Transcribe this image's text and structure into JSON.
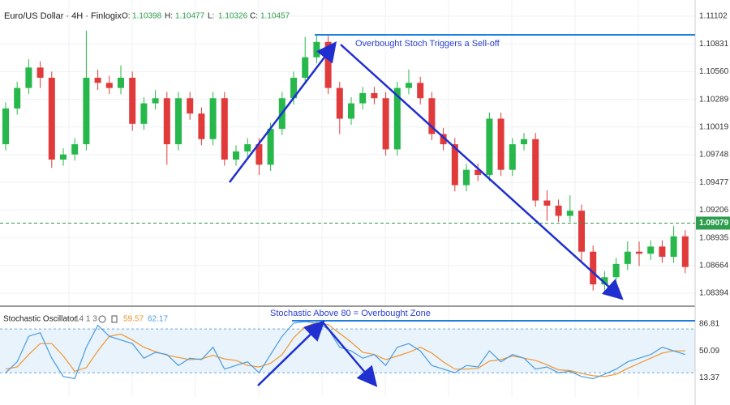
{
  "chart_data": [
    {
      "type": "candlestick",
      "title": "Euro/US Dollar · 4H · Finlogix",
      "ohlc_labels": [
        "O:",
        "H:",
        "L:",
        "C:"
      ],
      "ohlc_values": [
        1.10398,
        1.10477,
        1.10326,
        1.10457
      ],
      "annotation": "Overbought Stoch Triggers a Sell-off",
      "up_color": "#26b84a",
      "down_color": "#e03a3a",
      "last_price": 1.09079,
      "last_price_color": "#2e9e4e",
      "ylim": [
        1.08275,
        1.1126
      ],
      "yticks": [
        1.11102,
        1.10831,
        {
          "value": 1.1056,
          "label": "1.10560"
        },
        1.10289,
        1.10019,
        1.09748,
        1.09477,
        1.09206,
        1.08935,
        1.08664,
        1.08394
      ],
      "grid": true,
      "open": [
        1.0985,
        1.102,
        1.104,
        1.106,
        1.105,
        1.097,
        1.0975,
        1.0985,
        1.105,
        1.1045,
        1.104,
        1.105,
        1.1005,
        1.1025,
        1.103,
        1.0985,
        1.103,
        1.1015,
        1.099,
        1.103,
        1.097,
        1.0978,
        1.0985,
        1.0965,
        1.1,
        1.103,
        1.105,
        1.107,
        1.1085,
        1.104,
        1.101,
        1.1025,
        1.1035,
        1.103,
        1.098,
        1.104,
        1.1045,
        1.103,
        1.0995,
        1.0985,
        1.0945,
        1.096,
        1.0955,
        1.101,
        1.096,
        1.0985,
        1.099,
        1.093,
        1.0925,
        1.0915,
        1.092,
        1.088,
        1.0848,
        1.0855,
        1.0868,
        1.088,
        1.0878,
        1.0885,
        1.0875,
        1.0895
      ],
      "high": [
        1.1026,
        1.1046,
        1.1068,
        1.1066,
        1.1056,
        1.0981,
        1.0991,
        1.1096,
        1.1058,
        1.1052,
        1.1062,
        1.1056,
        1.1031,
        1.1038,
        1.1036,
        1.1036,
        1.1036,
        1.1021,
        1.1036,
        1.1036,
        1.0984,
        1.0991,
        1.0991,
        1.1006,
        1.1036,
        1.1056,
        1.109,
        1.1092,
        1.1091,
        1.1046,
        1.1031,
        1.1041,
        1.1041,
        1.1036,
        1.1046,
        1.1058,
        1.1051,
        1.1036,
        1.1001,
        1.0991,
        1.0966,
        1.0966,
        1.1016,
        1.1016,
        1.0991,
        1.0996,
        1.0996,
        1.094,
        1.0931,
        1.0935,
        1.0926,
        1.0886,
        1.0861,
        1.0874,
        1.089,
        1.089,
        1.0891,
        1.0891,
        1.0905,
        1.0901
      ],
      "low": [
        1.0979,
        1.1014,
        1.1034,
        1.104,
        1.0962,
        1.0964,
        1.0969,
        1.0979,
        1.1038,
        1.1034,
        1.1034,
        1.0998,
        1.0999,
        1.1019,
        1.0965,
        1.0979,
        1.1009,
        1.0984,
        1.0984,
        1.0964,
        1.0964,
        1.0972,
        1.0955,
        1.0959,
        1.0994,
        1.1024,
        1.1044,
        1.1064,
        1.1034,
        1.0995,
        1.1004,
        1.1019,
        1.1024,
        1.0974,
        1.0974,
        1.1034,
        1.1024,
        1.0989,
        1.0979,
        1.0939,
        1.0939,
        1.0949,
        1.0949,
        1.0954,
        1.0954,
        1.0979,
        1.0924,
        1.091,
        1.0909,
        1.0909,
        1.087,
        1.0842,
        1.0842,
        1.0849,
        1.0862,
        1.0866,
        1.0872,
        1.0869,
        1.0869,
        1.0859
      ],
      "close": [
        1.102,
        1.104,
        1.106,
        1.105,
        1.097,
        1.0975,
        1.0985,
        1.105,
        1.1045,
        1.104,
        1.105,
        1.1005,
        1.1025,
        1.103,
        1.0985,
        1.103,
        1.1015,
        1.099,
        1.103,
        1.097,
        1.0978,
        1.0985,
        1.0965,
        1.1,
        1.103,
        1.105,
        1.107,
        1.1085,
        1.104,
        1.101,
        1.1025,
        1.1035,
        1.103,
        1.098,
        1.104,
        1.1045,
        1.103,
        1.0995,
        1.0985,
        1.0945,
        1.096,
        1.0955,
        1.101,
        1.096,
        1.0985,
        1.099,
        1.093,
        1.0925,
        1.0915,
        1.092,
        1.088,
        1.0848,
        1.0855,
        1.0868,
        1.088,
        1.0878,
        1.0885,
        1.0875,
        1.0895,
        1.0865
      ]
    },
    {
      "type": "line",
      "title": "Stochastic Oscillator",
      "params": "14 1 3",
      "annotation": "Stochastic Above 80 = Overbought Zone",
      "ylim": [
        -13,
        109
      ],
      "yticks": [
        86.81,
        50.09,
        13.37
      ],
      "levels": [
        80,
        20
      ],
      "series": [
        {
          "color": "#f0952e",
          "legend_value": 59.57,
          "values": [
            25,
            28,
            45,
            60,
            60,
            43,
            22,
            27,
            50,
            70,
            73,
            65,
            55,
            49,
            44,
            41,
            38,
            39,
            44,
            39,
            37,
            30,
            28,
            33,
            45,
            68,
            83,
            89,
            86,
            74,
            62,
            48,
            45,
            38,
            43,
            48,
            55,
            47,
            35,
            25,
            25,
            26,
            36,
            38,
            43,
            40,
            37,
            31,
            24,
            23,
            19,
            16,
            15,
            18,
            26,
            33,
            40,
            47,
            50,
            50
          ]
        },
        {
          "color": "#4a9be0",
          "legend_value": 62.17,
          "values": [
            20,
            35,
            70,
            75,
            40,
            15,
            12,
            55,
            85,
            70,
            65,
            60,
            40,
            48,
            45,
            30,
            40,
            38,
            55,
            25,
            30,
            35,
            20,
            45,
            70,
            88,
            90,
            88,
            80,
            55,
            50,
            40,
            45,
            30,
            55,
            60,
            50,
            30,
            25,
            20,
            30,
            28,
            50,
            35,
            45,
            40,
            25,
            28,
            20,
            22,
            15,
            12,
            18,
            25,
            35,
            40,
            45,
            55,
            50,
            45
          ]
        }
      ]
    }
  ]
}
